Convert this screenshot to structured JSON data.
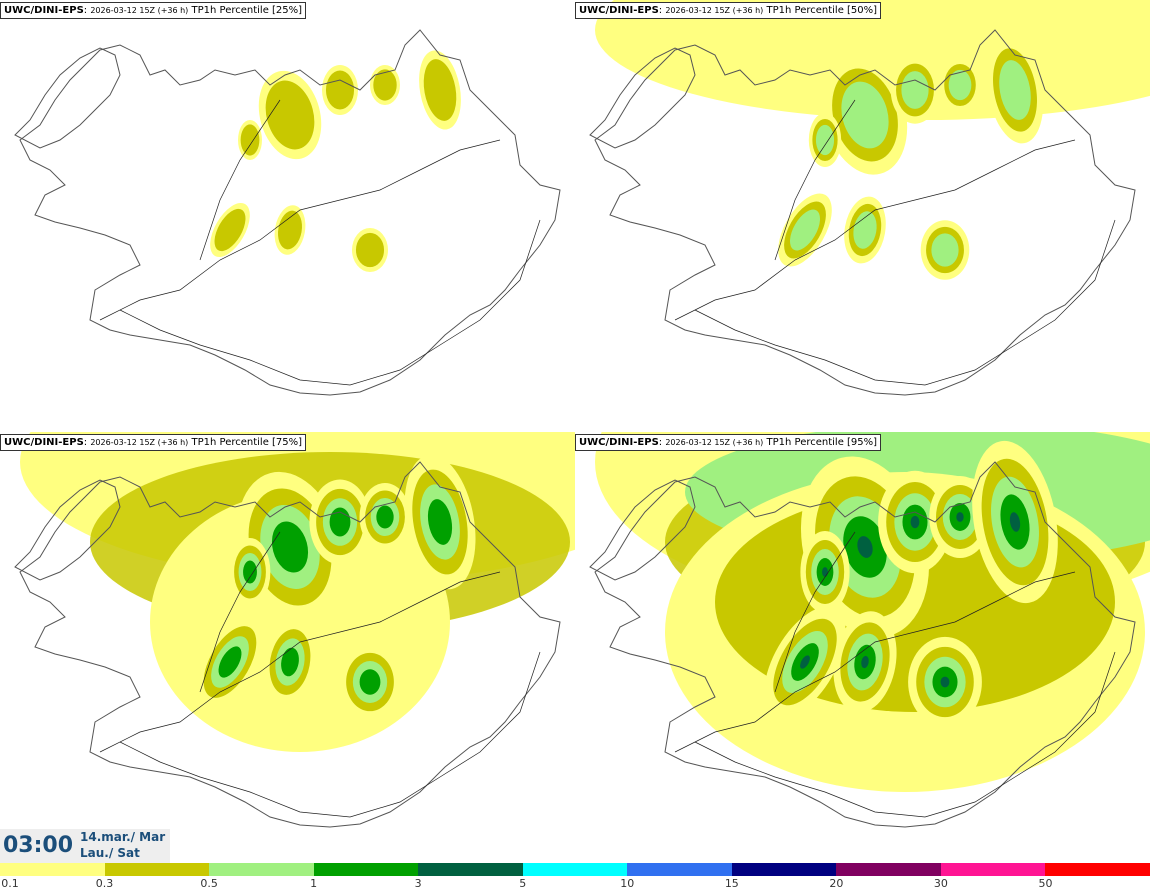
{
  "panels": [
    {
      "model": "UWC/DINI-EPS",
      "run": "2026-03-12 15Z (+36 h)",
      "field": "TP1h Percentile [25%]",
      "intensity": 0
    },
    {
      "model": "UWC/DINI-EPS",
      "run": "2026-03-12 15Z (+36 h)",
      "field": "TP1h Percentile [50%]",
      "intensity": 1
    },
    {
      "model": "UWC/DINI-EPS",
      "run": "2026-03-12 15Z (+36 h)",
      "field": "TP1h Percentile [75%]",
      "intensity": 2
    },
    {
      "model": "UWC/DINI-EPS",
      "run": "2026-03-12 15Z (+36 h)",
      "field": "TP1h Percentile [95%]",
      "intensity": 3
    }
  ],
  "time": {
    "main": "03:00",
    "date": "14.mar./ Mar",
    "day": "Lau./ Sat"
  },
  "legend": {
    "colors": [
      "#ffff80",
      "#c8c800",
      "#a0f080",
      "#00a000",
      "#006040",
      "#00ffff",
      "#3070f0",
      "#000080",
      "#800060",
      "#ff1493",
      "#ff0000"
    ],
    "labels": [
      "0.1",
      "0.3",
      "0.5",
      "1",
      "3",
      "5",
      "10",
      "15",
      "20",
      "30",
      "50"
    ]
  },
  "colors": {
    "coast": "#555555",
    "roads": "#222222",
    "time_text": "#1b4e7a"
  }
}
